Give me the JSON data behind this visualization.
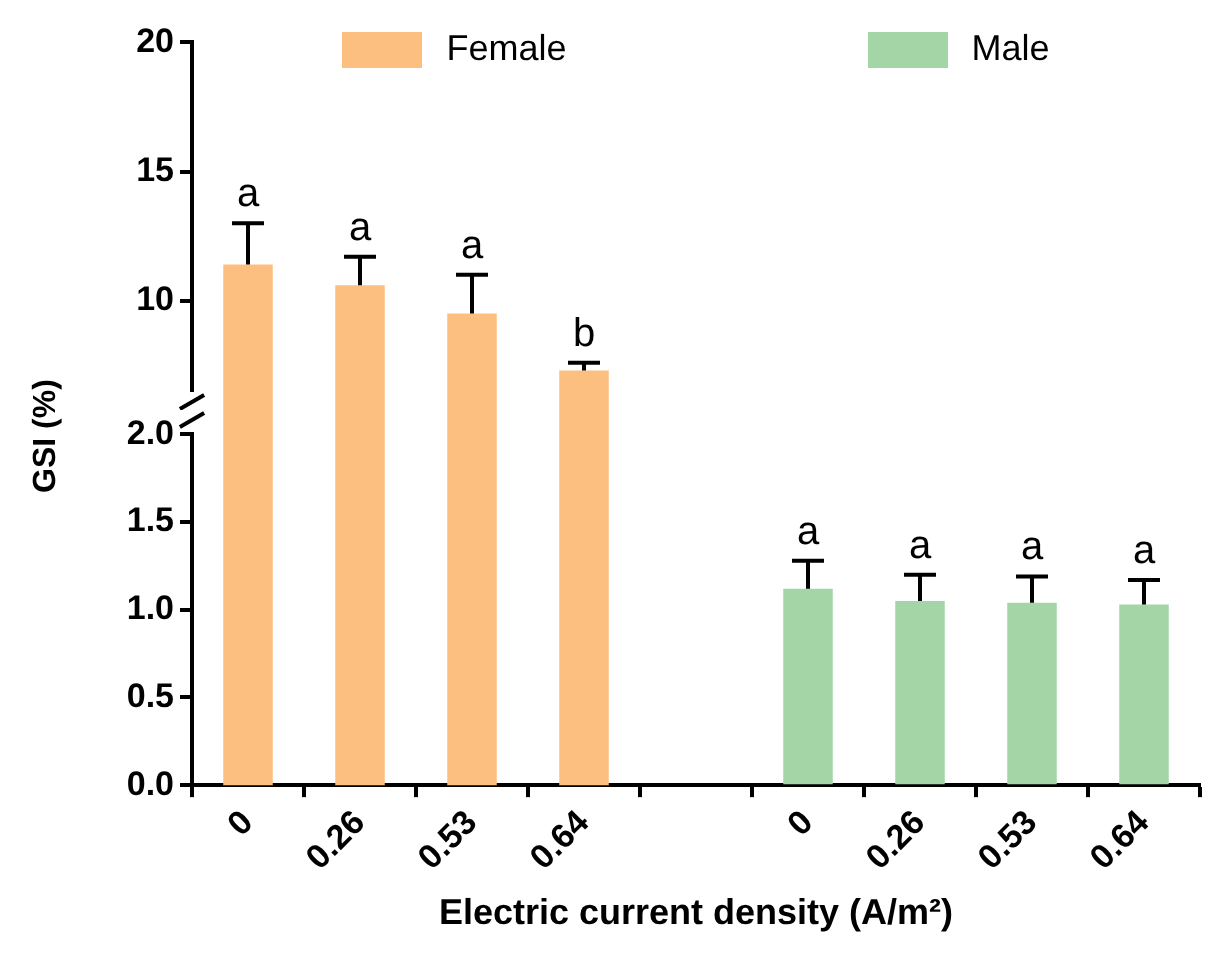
{
  "chart_data": [
    {
      "type": "bar",
      "categories": [
        "0",
        "0.26",
        "0.53",
        "0.64",
        null,
        "0",
        "0.26",
        "0.53",
        "0.64"
      ],
      "series": [
        {
          "name": "Female",
          "color": "#fdbf80",
          "values": [
            11.4,
            10.6,
            9.5,
            7.3,
            null,
            null,
            null,
            null,
            null
          ],
          "errors": [
            1.6,
            1.1,
            1.5,
            0.3,
            null,
            null,
            null,
            null,
            null
          ],
          "value_labels": [
            "a",
            "a",
            "a",
            "b",
            null,
            null,
            null,
            null,
            null
          ]
        },
        {
          "name": "Male",
          "color": "#a3d5a6",
          "values": [
            null,
            null,
            null,
            null,
            null,
            null,
            null,
            null,
            null
          ]
        }
      ],
      "ylim": [
        6,
        20
      ],
      "yticks": [
        10,
        15,
        20
      ],
      "tick_labels": "y",
      "grid": false,
      "legend": "top"
    },
    {
      "type": "bar",
      "xlabel": "Electric current density (A/m²)",
      "ylabel": "GSI (%)",
      "categories": [
        "0",
        "0.26",
        "0.53",
        "0.64",
        null,
        "0",
        "0.26",
        "0.53",
        "0.64"
      ],
      "series": [
        {
          "color": "#a3d5a6",
          "values": [
            null,
            null,
            null,
            null,
            null,
            1.12,
            1.05,
            1.04,
            1.03
          ],
          "errors": [
            null,
            null,
            null,
            null,
            null,
            0.16,
            0.15,
            0.15,
            0.14
          ],
          "value_labels": [
            null,
            null,
            null,
            null,
            null,
            "a",
            "a",
            "a",
            "a"
          ]
        }
      ],
      "ylim": [
        0,
        2
      ],
      "yticks": [
        {
          "value": 0,
          "label": "0.0"
        },
        0.5,
        {
          "value": 1,
          "label": "1.0"
        },
        1.5,
        {
          "value": 2,
          "label": "2.0"
        }
      ],
      "grid": false
    }
  ]
}
